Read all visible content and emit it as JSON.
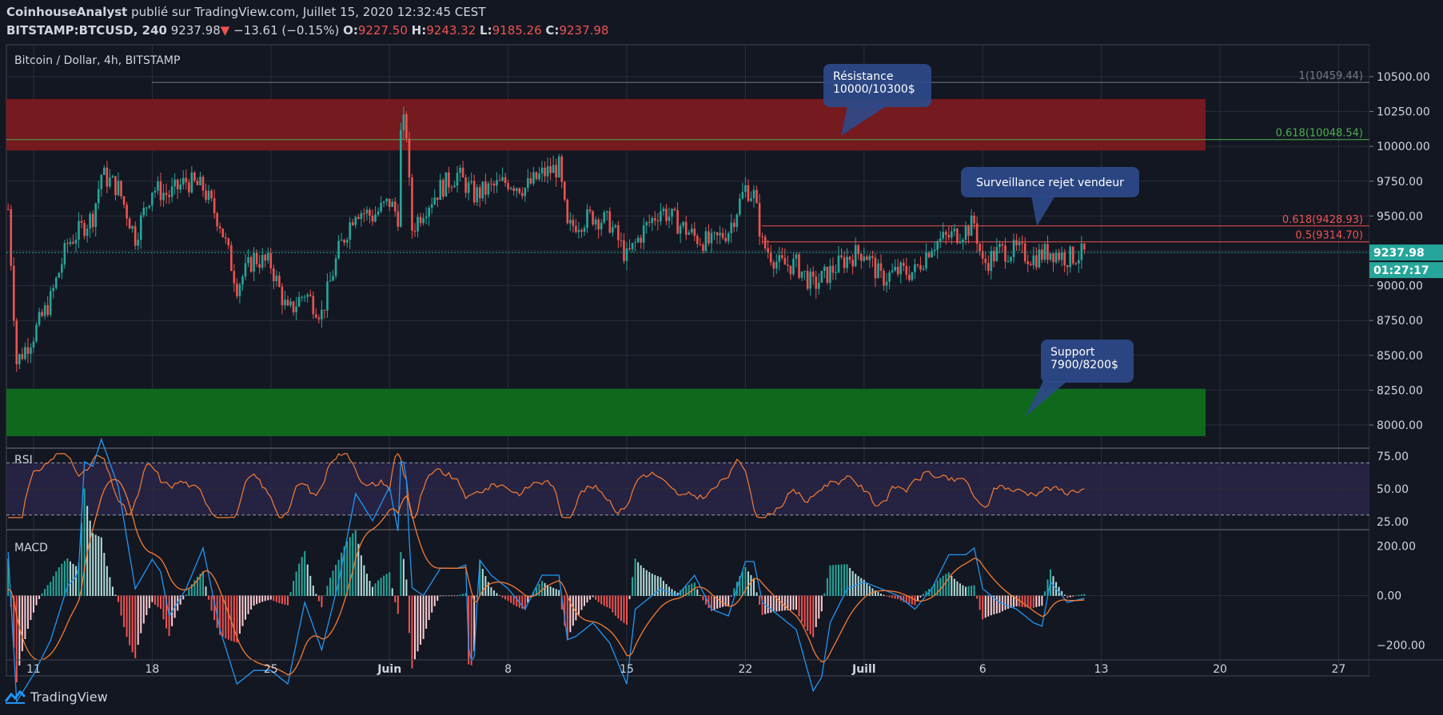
{
  "header": {
    "author": "CoinhouseAnalyst",
    "published_text": "publié sur TradingView.com, Juillet 15, 2020 12:32:45 CEST",
    "symbol": "BITSTAMP:BTCUSD, 240",
    "last": "9237.98",
    "change_arrow": "▼",
    "change": "−13.61 (−0.15%)",
    "o_label": "O:",
    "o": "9227.50",
    "h_label": "H:",
    "h": "9243.32",
    "l_label": "L:",
    "l": "9185.26",
    "c_label": "C:",
    "c": "9237.98"
  },
  "colors": {
    "background": "#131722",
    "bull": "#26a69a",
    "bear": "#ef5350",
    "resistance_zone": "#7a1a1f",
    "support_zone": "#0f6e1c",
    "rsi_line": "#f57c32",
    "rsi_band": "#2a2448",
    "macd_line": "#2196f3",
    "signal_line": "#f57c32",
    "callout": "#2d4a8a"
  },
  "chart_data": [
    {
      "type": "candlestick",
      "title": "Bitcoin / Dollar, 4h, BITSTAMP",
      "x_tick_labels": [
        "11",
        "18",
        "25",
        "Juin",
        "8",
        "15",
        "22",
        "Juill",
        "6",
        "13",
        "20",
        "27"
      ],
      "y_tick_labels": [
        "10500.00",
        "10250.00",
        "10000.00",
        "9750.00",
        "9500.00",
        "9250.00",
        "9000.00",
        "8750.00",
        "8500.00",
        "8250.00",
        "8000.00"
      ],
      "ylim": [
        7800,
        10700
      ],
      "x_days_from_may_11": [
        0,
        7,
        14,
        21,
        28,
        35,
        42,
        49,
        56,
        63,
        70,
        77
      ],
      "price_path_daily_close": [
        {
          "day": -1.5,
          "value": 9550
        },
        {
          "day": -1.0,
          "value": 8450
        },
        {
          "day": 0.0,
          "value": 8650
        },
        {
          "day": 1.0,
          "value": 8900
        },
        {
          "day": 2.0,
          "value": 9300
        },
        {
          "day": 3.5,
          "value": 9500
        },
        {
          "day": 4.0,
          "value": 9800
        },
        {
          "day": 5.0,
          "value": 9700
        },
        {
          "day": 6.0,
          "value": 9350
        },
        {
          "day": 7.0,
          "value": 9700
        },
        {
          "day": 8.0,
          "value": 9650
        },
        {
          "day": 9.0,
          "value": 9750
        },
        {
          "day": 10.0,
          "value": 9700
        },
        {
          "day": 11.0,
          "value": 9450
        },
        {
          "day": 12.0,
          "value": 9000
        },
        {
          "day": 13.0,
          "value": 9200
        },
        {
          "day": 14.0,
          "value": 9150
        },
        {
          "day": 15.0,
          "value": 8800
        },
        {
          "day": 16.0,
          "value": 8950
        },
        {
          "day": 17.0,
          "value": 8800
        },
        {
          "day": 18.0,
          "value": 9250
        },
        {
          "day": 19.0,
          "value": 9550
        },
        {
          "day": 20.0,
          "value": 9500
        },
        {
          "day": 21.0,
          "value": 9600
        },
        {
          "day": 21.5,
          "value": 9500
        },
        {
          "day": 21.7,
          "value": 10200
        },
        {
          "day": 22.0,
          "value": 10100
        },
        {
          "day": 22.3,
          "value": 9400
        },
        {
          "day": 23.0,
          "value": 9550
        },
        {
          "day": 24.0,
          "value": 9700
        },
        {
          "day": 25.0,
          "value": 9800
        },
        {
          "day": 26.0,
          "value": 9650
        },
        {
          "day": 27.0,
          "value": 9700
        },
        {
          "day": 28.0,
          "value": 9750
        },
        {
          "day": 29.0,
          "value": 9700
        },
        {
          "day": 30.0,
          "value": 9800
        },
        {
          "day": 31.0,
          "value": 9850
        },
        {
          "day": 31.5,
          "value": 9400
        },
        {
          "day": 32.0,
          "value": 9450
        },
        {
          "day": 33.0,
          "value": 9500
        },
        {
          "day": 34.0,
          "value": 9450
        },
        {
          "day": 35.0,
          "value": 9200
        },
        {
          "day": 36.0,
          "value": 9400
        },
        {
          "day": 37.0,
          "value": 9550
        },
        {
          "day": 38.0,
          "value": 9450
        },
        {
          "day": 39.0,
          "value": 9350
        },
        {
          "day": 40.0,
          "value": 9300
        },
        {
          "day": 41.0,
          "value": 9400
        },
        {
          "day": 42.0,
          "value": 9700
        },
        {
          "day": 42.5,
          "value": 9650
        },
        {
          "day": 43.0,
          "value": 9300
        },
        {
          "day": 44.0,
          "value": 9150
        },
        {
          "day": 45.0,
          "value": 9150
        },
        {
          "day": 46.0,
          "value": 9000
        },
        {
          "day": 47.0,
          "value": 9100
        },
        {
          "day": 48.0,
          "value": 9200
        },
        {
          "day": 49.0,
          "value": 9250
        },
        {
          "day": 50.0,
          "value": 9050
        },
        {
          "day": 51.0,
          "value": 9100
        },
        {
          "day": 52.0,
          "value": 9100
        },
        {
          "day": 53.0,
          "value": 9300
        },
        {
          "day": 54.0,
          "value": 9350
        },
        {
          "day": 55.0,
          "value": 9400
        },
        {
          "day": 55.5,
          "value": 9450
        },
        {
          "day": 56.0,
          "value": 9150
        },
        {
          "day": 57.0,
          "value": 9250
        },
        {
          "day": 58.0,
          "value": 9250
        },
        {
          "day": 59.0,
          "value": 9200
        },
        {
          "day": 60.0,
          "value": 9250
        },
        {
          "day": 61.0,
          "value": 9200
        },
        {
          "day": 62.0,
          "value": 9230
        }
      ],
      "current_price_label": "9237.98",
      "countdown_label": "01:27:17",
      "fib_levels": [
        {
          "label": "1(10459.44)",
          "value": 10459.44
        },
        {
          "label": "0.618(10048.54)",
          "value": 10048.54
        },
        {
          "label": "0.618(9428.93)",
          "value": 9428.93
        },
        {
          "label": "0.5(9314.70)",
          "value": 9314.7
        }
      ],
      "resistance_zone": [
        9970,
        10340
      ],
      "support_zone": [
        7920,
        8260
      ],
      "annotations": [
        {
          "text_lines": [
            "Résistance",
            "10000/10300$"
          ]
        },
        {
          "text_lines": [
            "Surveillance rejet vendeur"
          ]
        },
        {
          "text_lines": [
            "Support",
            "7900/8200$"
          ]
        }
      ]
    },
    {
      "type": "line",
      "title": "RSI",
      "y_tick_labels": [
        "75.00",
        "50.00",
        "25.00"
      ],
      "ylim": [
        20,
        80
      ],
      "band": [
        30,
        70
      ]
    },
    {
      "type": "line",
      "title": "MACD",
      "y_tick_labels": [
        "200.00",
        "0.00",
        "−200.00"
      ],
      "ylim": [
        -260,
        260
      ]
    }
  ],
  "footer": {
    "brand": "TradingView"
  }
}
